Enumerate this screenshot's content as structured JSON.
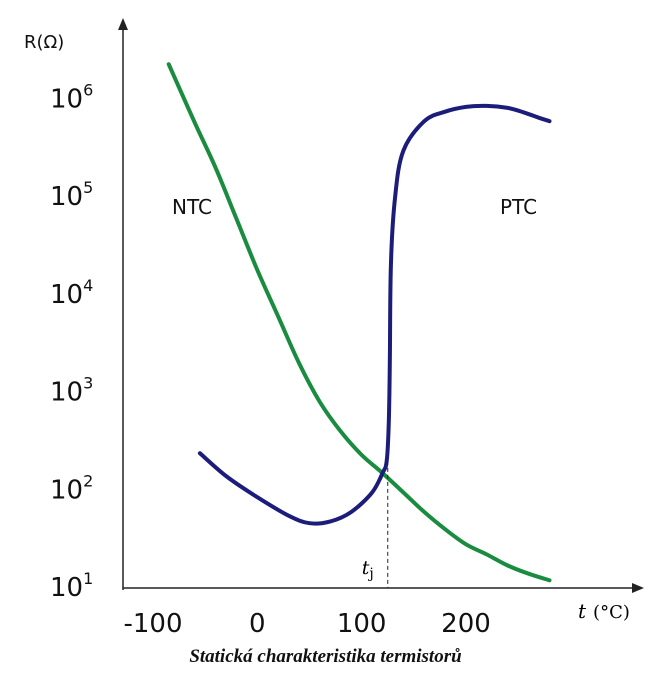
{
  "chart_data": {
    "type": "line",
    "title": "",
    "caption": "Statická charakteristika termistorů",
    "xlabel": {
      "var": "t",
      "unit": "(°C)"
    },
    "ylabel": "R(Ω)",
    "yscale": "log",
    "ylim": [
      10,
      1000000
    ],
    "xticks": [
      "-100",
      "0",
      "100",
      "200"
    ],
    "yticks": [
      {
        "base": "10",
        "exp": "1"
      },
      {
        "base": "10",
        "exp": "2"
      },
      {
        "base": "10",
        "exp": "3"
      },
      {
        "base": "10",
        "exp": "4"
      },
      {
        "base": "10",
        "exp": "5"
      },
      {
        "base": "10",
        "exp": "6"
      }
    ],
    "series": [
      {
        "name": "NTC",
        "color": "#1a8c3f",
        "points": [
          [
            -85,
            2300000
          ],
          [
            -60,
            580000
          ],
          [
            -40,
            200000
          ],
          [
            -20,
            60000
          ],
          [
            0,
            18000
          ],
          [
            20,
            6000
          ],
          [
            40,
            2000
          ],
          [
            60,
            800
          ],
          [
            80,
            400
          ],
          [
            100,
            230
          ],
          [
            120,
            150
          ],
          [
            140,
            95
          ],
          [
            160,
            60
          ],
          [
            180,
            40
          ],
          [
            200,
            28
          ],
          [
            220,
            22
          ],
          [
            240,
            17
          ],
          [
            260,
            14
          ],
          [
            280,
            12
          ]
        ]
      },
      {
        "name": "PTC",
        "color": "#1c1c7a",
        "points": [
          [
            -55,
            240
          ],
          [
            -30,
            140
          ],
          [
            0,
            85
          ],
          [
            30,
            55
          ],
          [
            50,
            46
          ],
          [
            70,
            48
          ],
          [
            90,
            60
          ],
          [
            110,
            95
          ],
          [
            120,
            150
          ],
          [
            124,
            200
          ],
          [
            126,
            500
          ],
          [
            127,
            2000
          ],
          [
            128,
            20000
          ],
          [
            132,
            100000
          ],
          [
            140,
            300000
          ],
          [
            160,
            600000
          ],
          [
            180,
            750000
          ],
          [
            200,
            840000
          ],
          [
            220,
            860000
          ],
          [
            240,
            820000
          ],
          [
            255,
            740000
          ],
          [
            270,
            650000
          ],
          [
            280,
            600000
          ]
        ]
      }
    ],
    "annotations": {
      "intersection_label": "t",
      "intersection_sub": "j",
      "intersection_x": 125,
      "intersection_y": 200
    },
    "grid": false,
    "legend": "none"
  }
}
